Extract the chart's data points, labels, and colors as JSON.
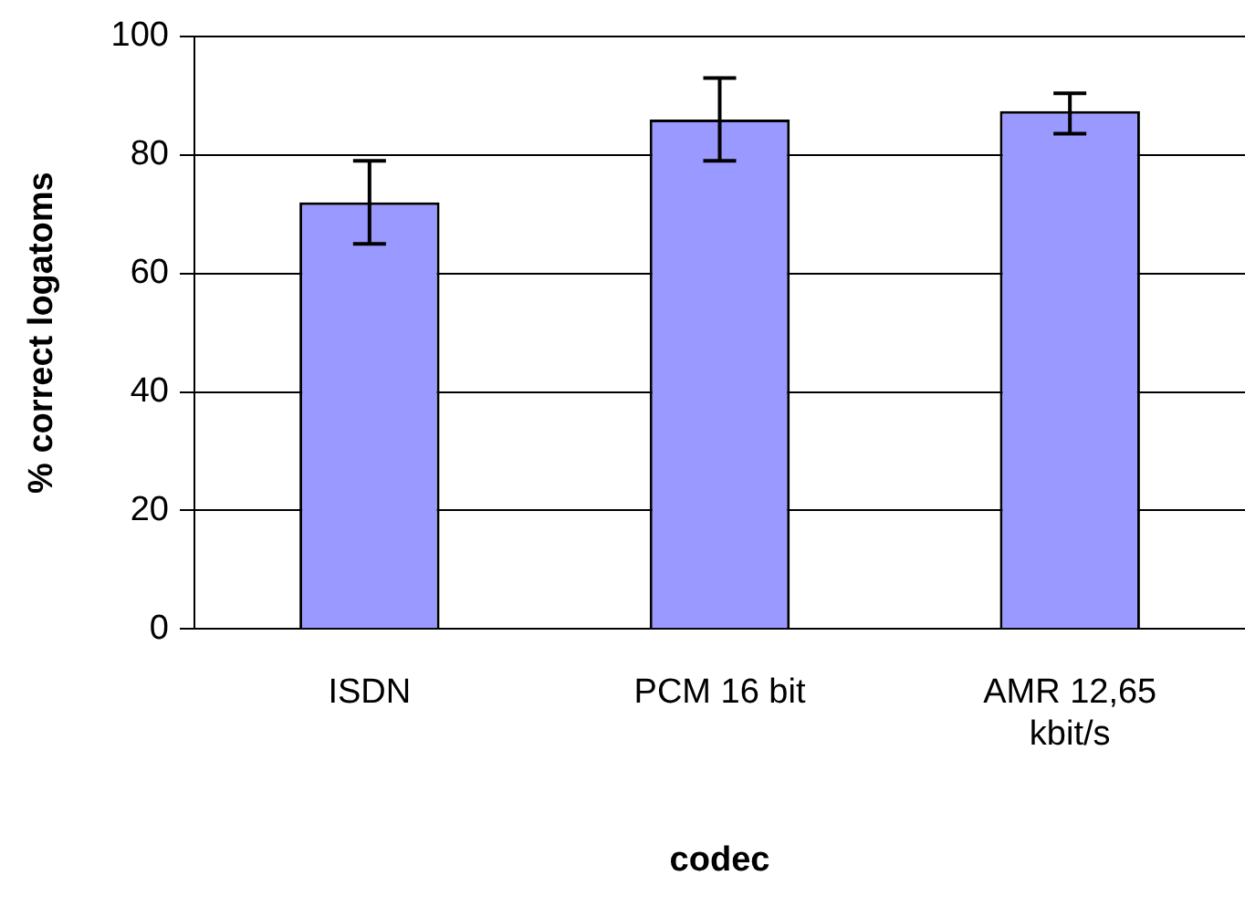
{
  "chart_data": {
    "type": "bar",
    "xlabel": "codec",
    "ylabel": "% correct logatoms",
    "categories": [
      "ISDN",
      "PCM 16 bit",
      "AMR 12,65 kbit/s"
    ],
    "values": [
      72,
      86,
      87.4
    ],
    "errors": [
      [
        65,
        79
      ],
      [
        79,
        93
      ],
      [
        83.6,
        90.4
      ]
    ],
    "color": "#9999ff",
    "ylim": [
      0,
      100
    ],
    "yticks": [
      0,
      20,
      40,
      60,
      80,
      100
    ],
    "grid": "y",
    "legend": false
  }
}
